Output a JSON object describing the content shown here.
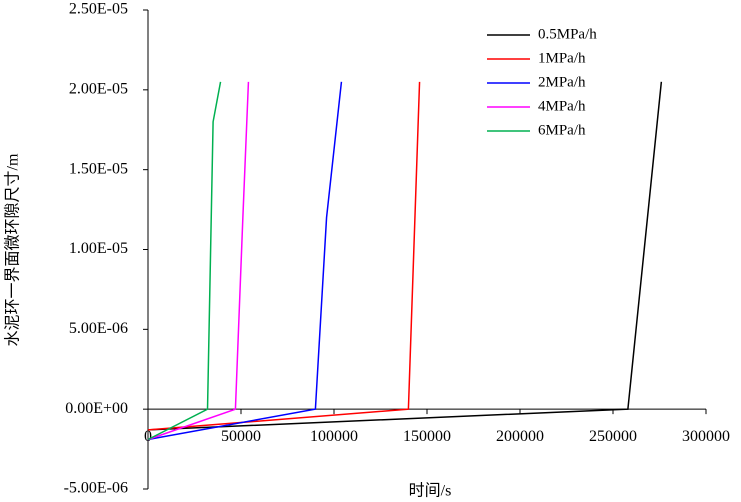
{
  "chart_data": {
    "type": "line",
    "xlabel": "时间/s",
    "ylabel": "水泥环一界面微环隙尺寸/m",
    "xlim": [
      0,
      300000
    ],
    "xticks": [
      0,
      50000,
      100000,
      150000,
      200000,
      250000,
      300000
    ],
    "ylim": [
      -5e-06,
      2.5e-05
    ],
    "yticks": [
      {
        "value": -5e-06,
        "label": "-5.00E-06"
      },
      {
        "value": 0,
        "label": "0.00E+00"
      },
      {
        "value": 5e-06,
        "label": "5.00E-06"
      },
      {
        "value": 1e-05,
        "label": "1.00E-05"
      },
      {
        "value": 1.5e-05,
        "label": "1.50E-05"
      },
      {
        "value": 2e-05,
        "label": "2.00E-05"
      },
      {
        "value": 2.5e-05,
        "label": "2.50E-05"
      }
    ],
    "legend": "upper right",
    "series": [
      {
        "name": "0.5MPa/h",
        "color": "#000000",
        "x": [
          0,
          258000,
          276000
        ],
        "values": [
          -1.3e-06,
          0,
          2.05e-05
        ]
      },
      {
        "name": "1MPa/h",
        "color": "#ff0000",
        "x": [
          0,
          140000,
          146000
        ],
        "values": [
          -1.3e-06,
          0,
          2.05e-05
        ]
      },
      {
        "name": "2MPa/h",
        "color": "#0000ff",
        "x": [
          0,
          90000,
          96000,
          104000
        ],
        "values": [
          -1.9e-06,
          0,
          1.2e-05,
          2.05e-05
        ]
      },
      {
        "name": "4MPa/h",
        "color": "#ff00ff",
        "x": [
          0,
          47000,
          51000,
          54000
        ],
        "values": [
          -1.9e-06,
          0,
          1.2e-05,
          2.05e-05
        ]
      },
      {
        "name": "6MPa/h",
        "color": "#00b050",
        "x": [
          0,
          32000,
          35000,
          39000
        ],
        "values": [
          -1.9e-06,
          0,
          1.8e-05,
          2.05e-05
        ]
      }
    ]
  }
}
